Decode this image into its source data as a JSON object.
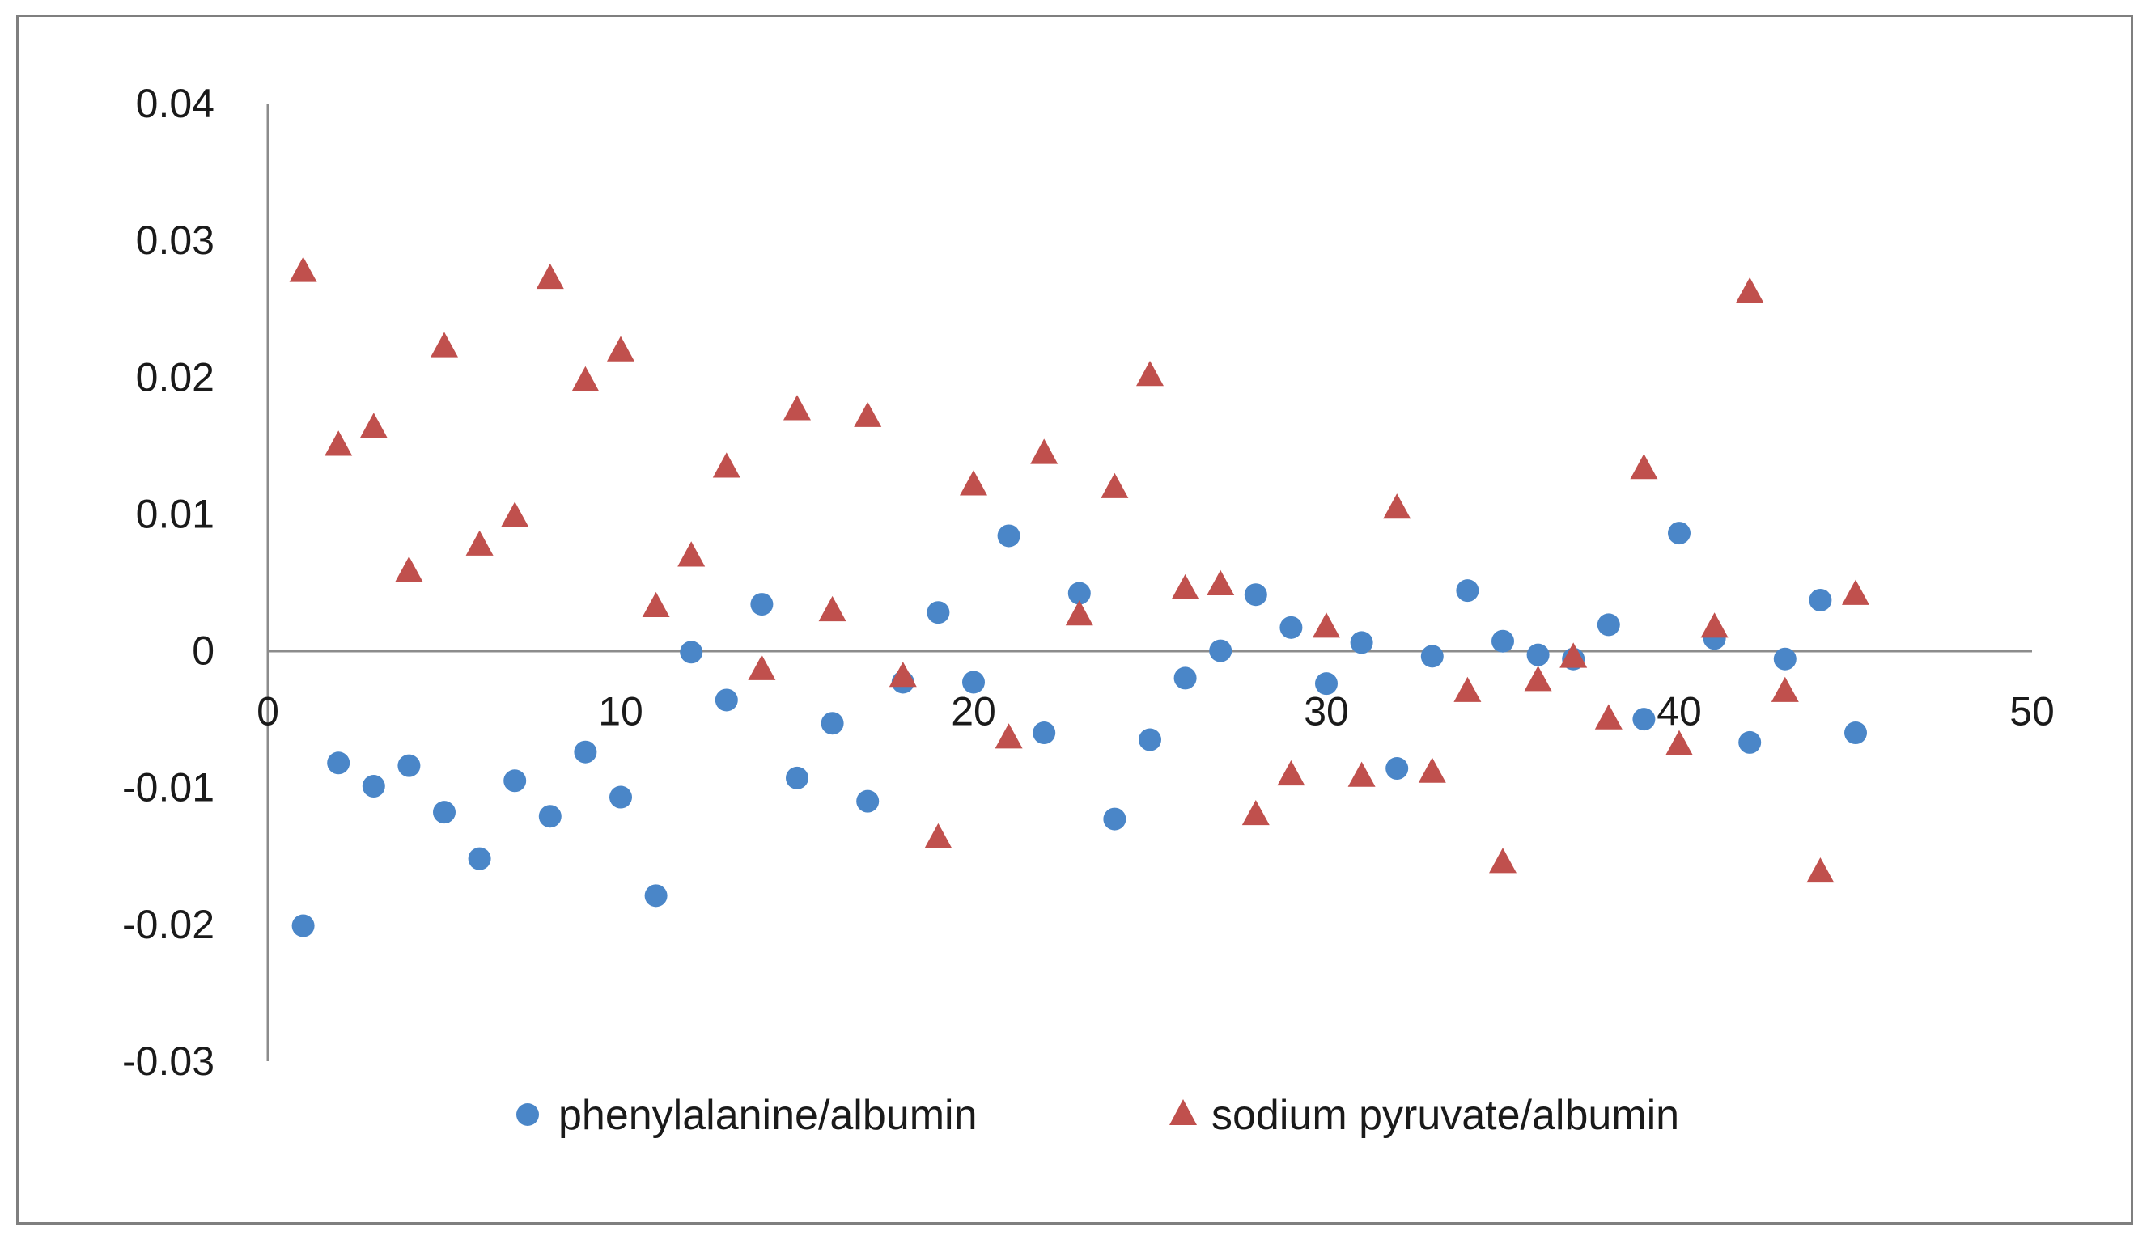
{
  "chart_data": {
    "type": "scatter",
    "title": "",
    "xlabel": "",
    "ylabel": "",
    "xlim": [
      0,
      50
    ],
    "ylim": [
      -0.03,
      0.04
    ],
    "x_ticks": [
      0,
      10,
      20,
      30,
      40,
      50
    ],
    "y_ticks": [
      -0.03,
      -0.02,
      -0.01,
      0,
      0.01,
      0.02,
      0.03,
      0.04
    ],
    "x_tick_labels": [
      "0",
      "10",
      "20",
      "30",
      "40",
      "50"
    ],
    "y_tick_labels": [
      "-0.03",
      "-0.02",
      "-0.01",
      "0",
      "0.01",
      "0.02",
      "0.03",
      "0.04"
    ],
    "grid": false,
    "legend_position": "bottom",
    "series": [
      {
        "name": "phenylalanine/albumin",
        "marker": "circle",
        "color": "#4a86c8",
        "x": [
          1,
          2,
          3,
          4,
          5,
          6,
          7,
          8,
          9,
          10,
          11,
          12,
          13,
          14,
          15,
          16,
          17,
          18,
          19,
          20,
          21,
          22,
          23,
          24,
          25,
          26,
          27,
          28,
          29,
          30,
          31,
          32,
          33,
          34,
          35,
          36,
          37,
          38,
          39,
          40,
          41,
          42,
          43,
          44,
          45
        ],
        "y": [
          -0.0201,
          -0.0082,
          -0.0099,
          -0.0084,
          -0.0118,
          -0.0152,
          -0.0095,
          -0.0121,
          -0.0074,
          -0.0107,
          -0.0179,
          -0.0001,
          -0.0036,
          0.0034,
          -0.0093,
          -0.0053,
          -0.011,
          -0.0023,
          0.0028,
          -0.0023,
          0.0084,
          -0.006,
          0.0042,
          -0.0123,
          -0.0065,
          -0.002,
          0.0,
          0.0041,
          0.0017,
          -0.0024,
          0.0006,
          -0.0086,
          -0.0004,
          0.0044,
          0.0007,
          -0.0003,
          -0.0006,
          0.0019,
          -0.005,
          0.0086,
          0.0009,
          -0.0067,
          -0.0006,
          0.0037,
          -0.006
        ]
      },
      {
        "name": "sodium pyruvate/albumin",
        "marker": "triangle",
        "color": "#c0504d",
        "x": [
          1,
          2,
          3,
          4,
          5,
          6,
          7,
          8,
          9,
          10,
          11,
          12,
          13,
          14,
          15,
          16,
          17,
          18,
          19,
          20,
          21,
          22,
          23,
          24,
          25,
          26,
          27,
          28,
          29,
          30,
          31,
          32,
          33,
          34,
          35,
          36,
          37,
          38,
          39,
          40,
          41,
          42,
          43,
          44,
          45
        ],
        "y": [
          0.0277,
          0.015,
          0.0163,
          0.0058,
          0.0222,
          0.0077,
          0.0098,
          0.0272,
          0.0197,
          0.0219,
          0.0032,
          0.0069,
          0.0134,
          -0.0014,
          0.0176,
          0.0029,
          0.0171,
          -0.0019,
          -0.0137,
          0.0121,
          -0.0064,
          0.0144,
          0.0026,
          0.0119,
          0.0201,
          0.0045,
          0.0048,
          -0.012,
          -0.0091,
          0.0017,
          -0.0092,
          0.0104,
          -0.0089,
          -0.003,
          -0.0155,
          -0.0022,
          -0.0005,
          -0.005,
          0.0133,
          -0.0069,
          0.0017,
          0.0262,
          -0.003,
          -0.0162,
          0.0041
        ]
      }
    ]
  }
}
